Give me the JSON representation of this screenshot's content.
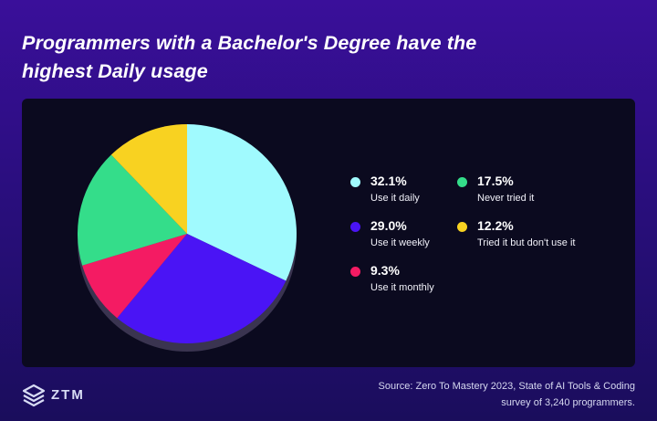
{
  "title": "Programmers with a Bachelor's Degree have the highest Daily usage",
  "colors": {
    "daily": "#a0fafe",
    "weekly": "#4a14f5",
    "monthly": "#f41b63",
    "never": "#34dd8a",
    "tried": "#f8d221",
    "shadow": "#3a3450"
  },
  "chart_data": {
    "type": "pie",
    "title": "Programmers with a Bachelor's Degree have the highest Daily usage",
    "slices": [
      {
        "value": 32.1,
        "value_label": "32.1%",
        "label": "Use it daily",
        "color": "#a0fafe"
      },
      {
        "value": 29.0,
        "value_label": "29.0%",
        "label": "Use it weekly",
        "color": "#4a14f5"
      },
      {
        "value": 9.3,
        "value_label": "9.3%",
        "label": "Use it monthly",
        "color": "#f41b63"
      },
      {
        "value": 17.5,
        "value_label": "17.5%",
        "label": "Never tried it",
        "color": "#34dd8a"
      },
      {
        "value": 12.2,
        "value_label": "12.2%",
        "label": "Tried it but don't use it",
        "color": "#f8d221"
      }
    ],
    "legend_placement": "right"
  },
  "logo": {
    "text": "ZTM"
  },
  "source": {
    "line1": "Source: Zero To Mastery 2023, State of AI Tools & Coding",
    "line2": "survey of 3,240 programmers."
  }
}
